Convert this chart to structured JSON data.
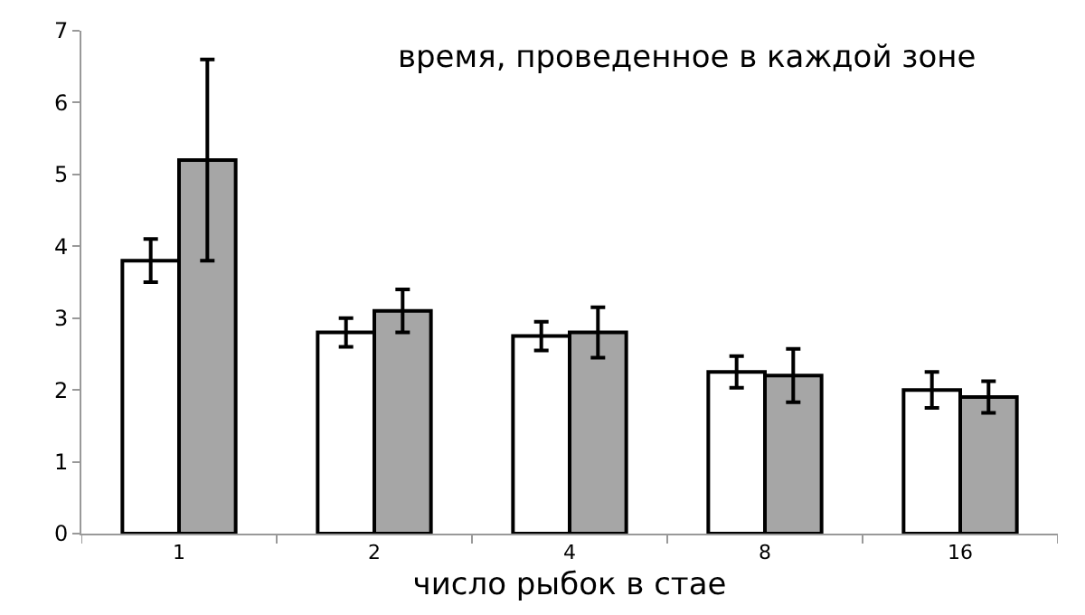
{
  "chart_data": {
    "type": "bar",
    "title": "время, проведенное в каждой зоне",
    "xlabel": "число рыбок в стае",
    "categories": [
      "1",
      "2",
      "4",
      "8",
      "16"
    ],
    "series": [
      {
        "color": "#ffffff",
        "values": [
          3.8,
          2.8,
          2.75,
          2.25,
          2.0
        ],
        "errors": [
          0.3,
          0.2,
          0.2,
          0.22,
          0.25
        ]
      },
      {
        "color": "#a6a6a6",
        "values": [
          5.2,
          3.1,
          2.8,
          2.2,
          1.9
        ],
        "errors": [
          1.4,
          0.3,
          0.35,
          0.37,
          0.22
        ]
      }
    ],
    "ylim": [
      0,
      7
    ],
    "yticks": [
      0,
      1,
      2,
      3,
      4,
      5,
      6,
      7
    ]
  }
}
